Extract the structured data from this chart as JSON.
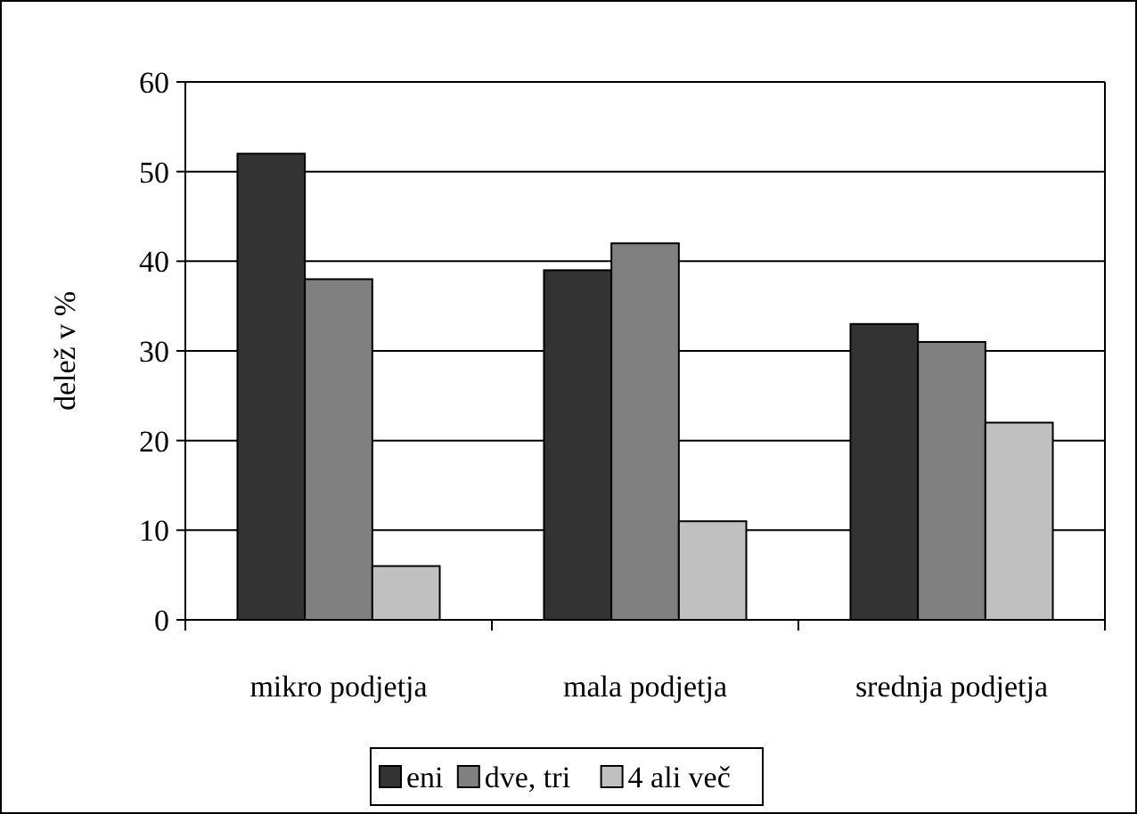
{
  "chart_data": {
    "type": "bar",
    "ylabel": "delež v %",
    "categories": [
      "mikro podjetja",
      "mala podjetja",
      "srednja podjetja"
    ],
    "series": [
      {
        "name": "eni",
        "color": "#333333",
        "values": [
          52,
          39,
          33
        ]
      },
      {
        "name": "dve, tri",
        "color": "#808080",
        "values": [
          38,
          42,
          31
        ]
      },
      {
        "name": "4 ali več",
        "color": "#c0c0c0",
        "values": [
          6,
          11,
          22
        ]
      }
    ],
    "ylim": [
      0,
      60
    ],
    "yticks": [
      0,
      10,
      20,
      30,
      40,
      50,
      60
    ],
    "grid": "y",
    "legend": "bottom"
  }
}
